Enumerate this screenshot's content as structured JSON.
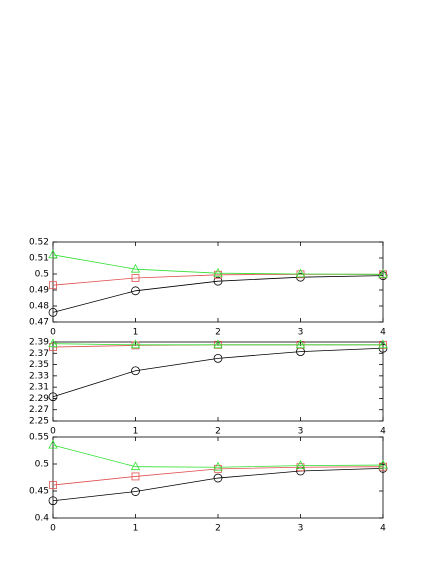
{
  "chart_data": [
    {
      "type": "line",
      "x": [
        0,
        1,
        2,
        3,
        4
      ],
      "xlim": [
        0,
        4
      ],
      "xticks": [
        0,
        1,
        2,
        3,
        4
      ],
      "ylim": [
        0.47,
        0.52
      ],
      "yticks": [
        0.47,
        0.48,
        0.49,
        0.5,
        0.51,
        0.52
      ],
      "series": [
        {
          "color": "#000000",
          "marker": "circle",
          "values": [
            0.476,
            0.4895,
            0.4955,
            0.498,
            0.499
          ]
        },
        {
          "color": "#e05050",
          "marker": "square",
          "values": [
            0.493,
            0.4975,
            0.4995,
            0.4998,
            0.4998
          ]
        },
        {
          "color": "#30e030",
          "marker": "triangle",
          "values": [
            0.512,
            0.503,
            0.5005,
            0.5,
            0.4998
          ]
        }
      ]
    },
    {
      "type": "line",
      "x": [
        0,
        1,
        2,
        3,
        4
      ],
      "xlim": [
        0,
        4
      ],
      "xticks": [
        0,
        1,
        2,
        3,
        4
      ],
      "ylim": [
        2.25,
        2.39
      ],
      "yticks": [
        2.25,
        2.27,
        2.29,
        2.31,
        2.33,
        2.35,
        2.37,
        2.39
      ],
      "series": [
        {
          "color": "#000000",
          "marker": "circle",
          "values": [
            2.293,
            2.339,
            2.361,
            2.373,
            2.379
          ]
        },
        {
          "color": "#e05050",
          "marker": "square",
          "values": [
            2.381,
            2.384,
            2.385,
            2.385,
            2.385
          ]
        },
        {
          "color": "#30e030",
          "marker": "triangle",
          "values": [
            2.387,
            2.385,
            2.385,
            2.385,
            2.385
          ]
        }
      ]
    },
    {
      "type": "line",
      "x": [
        0,
        1,
        2,
        3,
        4
      ],
      "xlim": [
        0,
        4
      ],
      "xticks": [
        0,
        1,
        2,
        3,
        4
      ],
      "ylim": [
        0.4,
        0.55
      ],
      "yticks": [
        0.4,
        0.45,
        0.5,
        0.55
      ],
      "series": [
        {
          "color": "#000000",
          "marker": "circle",
          "values": [
            0.432,
            0.449,
            0.474,
            0.487,
            0.492
          ]
        },
        {
          "color": "#e05050",
          "marker": "square",
          "values": [
            0.461,
            0.477,
            0.491,
            0.494,
            0.495
          ]
        },
        {
          "color": "#30e030",
          "marker": "triangle",
          "values": [
            0.535,
            0.495,
            0.494,
            0.497,
            0.498
          ]
        }
      ]
    }
  ]
}
